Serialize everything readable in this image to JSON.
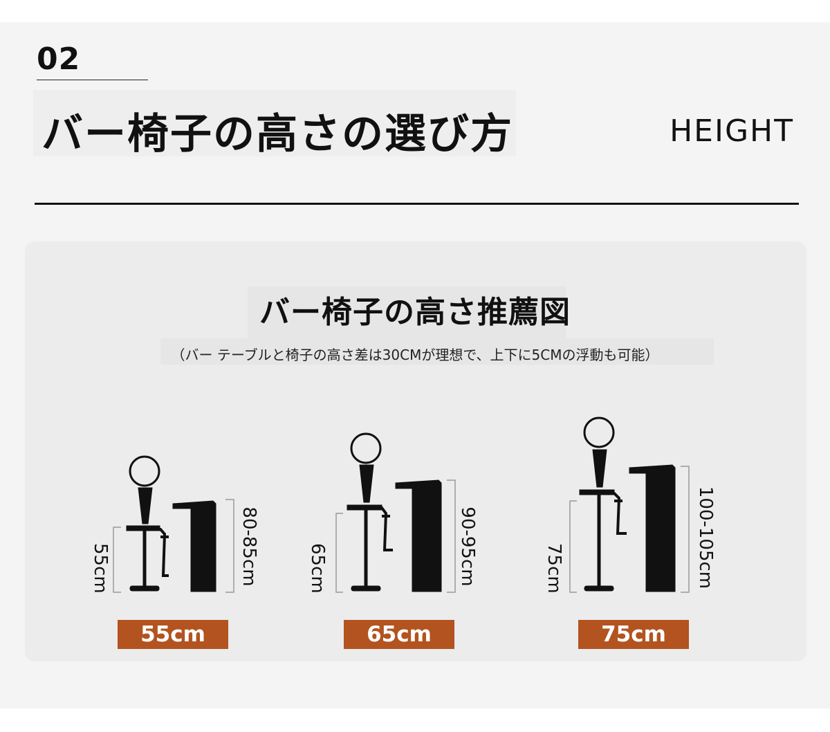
{
  "header": {
    "section_number": "02",
    "title": "バー椅子の高さの選び方",
    "english_label": "HEIGHT"
  },
  "card": {
    "subtitle": "バー椅子の高さ推薦図",
    "note": "（バー テーブルと椅子の高さ差は30CMが理想で、上下に5CMの浮動も可能）",
    "figures": [
      {
        "chair_height_label": "55cm",
        "table_height_label": "80-85cm",
        "tag": "55cm"
      },
      {
        "chair_height_label": "65cm",
        "table_height_label": "90-95cm",
        "tag": "65cm"
      },
      {
        "chair_height_label": "75cm",
        "table_height_label": "100-105cm",
        "tag": "75cm"
      }
    ]
  },
  "colors": {
    "tag": "#b35320",
    "ink": "#111111",
    "card": "#ececec",
    "page": "#f4f4f4"
  }
}
